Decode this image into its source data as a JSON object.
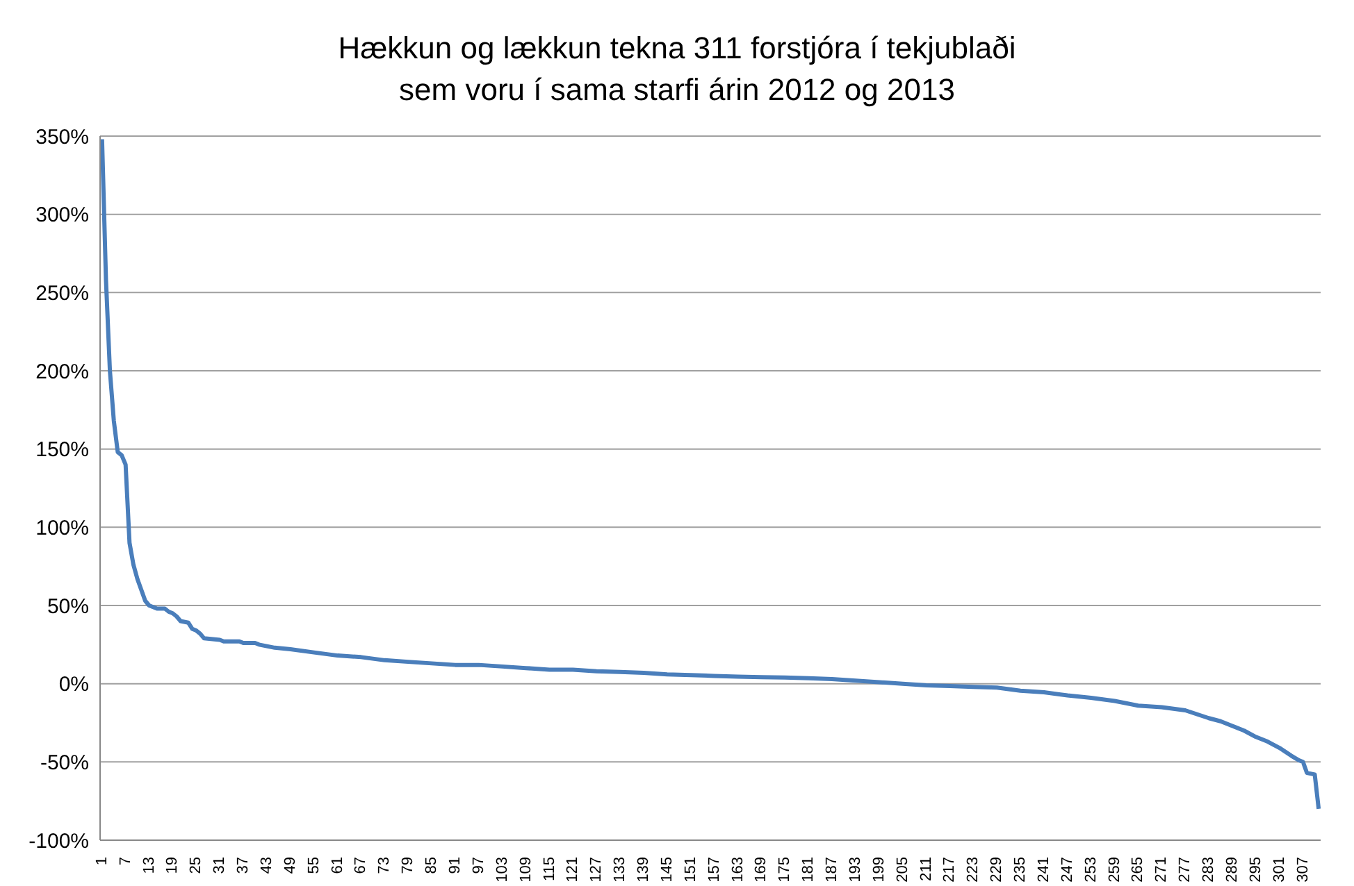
{
  "chart_data": {
    "type": "line",
    "title": "Hækkun og lækkun tekna 311 forstjóra í tekjublaði\nsem voru í sama starfi árin 2012 og 2013",
    "series": [
      {
        "color": "#4a7ebb",
        "x": [
          1,
          2,
          3,
          4,
          5,
          6,
          7,
          8,
          9,
          10,
          11,
          12,
          13,
          14,
          15,
          17,
          18,
          19,
          20,
          21,
          23,
          24,
          25,
          26,
          27,
          31,
          32,
          36,
          37,
          40,
          41,
          43,
          45,
          49,
          55,
          61,
          67,
          73,
          79,
          85,
          91,
          97,
          103,
          109,
          115,
          121,
          127,
          133,
          139,
          145,
          151,
          157,
          163,
          169,
          175,
          181,
          187,
          193,
          199,
          205,
          211,
          217,
          223,
          229,
          235,
          241,
          247,
          253,
          259,
          265,
          271,
          277,
          283,
          286,
          289,
          292,
          295,
          298,
          301,
          304,
          306,
          307,
          308,
          310,
          311
        ],
        "values": [
          348,
          258,
          200,
          168,
          148,
          146,
          140,
          90,
          76,
          67,
          60,
          53,
          50,
          49,
          48,
          48,
          46,
          45,
          43,
          40,
          39,
          35,
          34,
          32,
          29,
          28,
          27,
          27,
          26,
          26,
          25,
          24,
          23,
          22,
          20,
          18,
          17,
          15,
          14,
          13,
          12,
          12,
          11,
          10,
          9,
          9,
          8,
          7.5,
          7,
          6,
          5.5,
          5,
          4.5,
          4.2,
          4,
          3.5,
          3,
          2,
          1,
          0,
          -1,
          -1.5,
          -2,
          -2.5,
          -4.5,
          -5.5,
          -7.5,
          -9,
          -11,
          -14,
          -15,
          -17,
          -22,
          -24,
          -27,
          -30,
          -34,
          -37,
          -41,
          -46,
          -49,
          -50,
          -57,
          -58,
          -80
        ]
      }
    ],
    "xlim": [
      0.5,
      311.5
    ],
    "xticks": [
      1,
      7,
      13,
      19,
      25,
      31,
      37,
      43,
      49,
      55,
      61,
      67,
      73,
      79,
      85,
      91,
      97,
      103,
      109,
      115,
      121,
      127,
      133,
      139,
      145,
      151,
      157,
      163,
      169,
      175,
      181,
      187,
      193,
      199,
      205,
      211,
      217,
      223,
      229,
      235,
      241,
      247,
      253,
      259,
      265,
      271,
      277,
      283,
      289,
      295,
      301,
      307
    ],
    "ylim": [
      -100,
      350
    ],
    "yticks": [
      {
        "value": -100,
        "label": "-100%"
      },
      {
        "value": -50,
        "label": "-50%"
      },
      {
        "value": 0,
        "label": "0%"
      },
      {
        "value": 50,
        "label": "50%"
      },
      {
        "value": 100,
        "label": "100%"
      },
      {
        "value": 150,
        "label": "150%"
      },
      {
        "value": 200,
        "label": "200%"
      },
      {
        "value": 250,
        "label": "250%"
      },
      {
        "value": 300,
        "label": "300%"
      },
      {
        "value": 350,
        "label": "350%"
      }
    ],
    "grid": "y",
    "marker": "none",
    "line_style": "solid"
  }
}
